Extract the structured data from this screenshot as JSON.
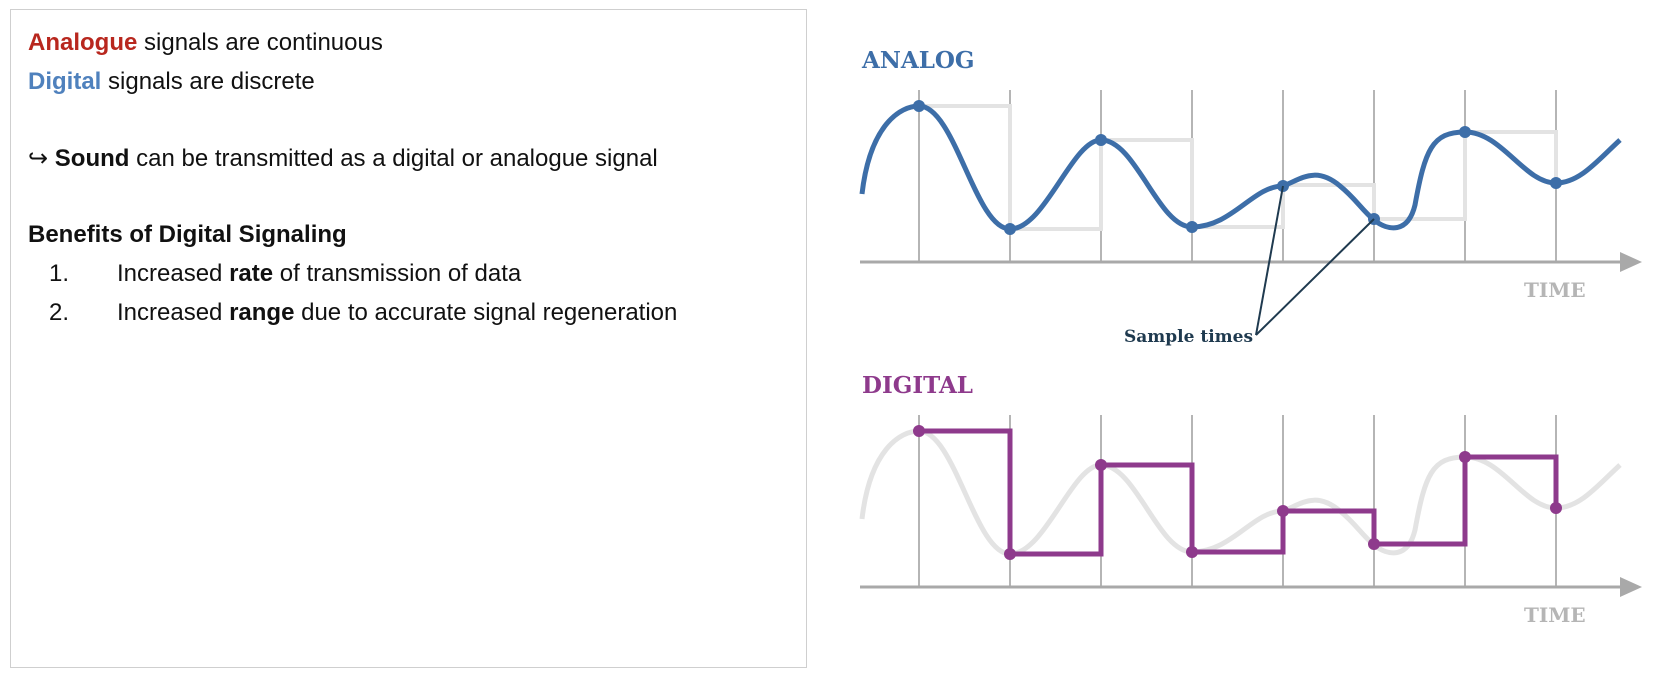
{
  "notes": {
    "line1": {
      "highlight": "Analogue",
      "rest": " signals are continuous"
    },
    "line2": {
      "highlight": "Digital",
      "rest": " signals are discrete"
    },
    "line3": {
      "arrow": "↪",
      "bold": "Sound",
      "rest": " can be transmitted as a digital or analogue signal"
    },
    "benefits_heading": "Benefits of Digital Signaling",
    "benefits": [
      {
        "number": "1.",
        "before": "Increased ",
        "bold": "rate",
        "after": " of transmission of data"
      },
      {
        "number": "2.",
        "before": "Increased ",
        "bold": "range",
        "after": " due to accurate signal regeneration"
      }
    ]
  },
  "diagram": {
    "analog_title": "ANALOG",
    "digital_title": "DIGITAL",
    "time_label": "TIME",
    "sample_label": "Sample times",
    "colors": {
      "analogue_text": "#b8271e",
      "digital_text": "#4f81bd",
      "analog_wave": "#3d6ea8",
      "digital_wave": "#8e3a8c",
      "ghost": "#e3e3e3",
      "grid": "#b5b5b5",
      "axis": "#a9a9a9",
      "time_label": "#b5b5b5",
      "pointer": "#1f3a4f"
    },
    "icons": {
      "axis_end": "arrow-right-icon",
      "list_marker": "hook-arrow-icon"
    }
  }
}
